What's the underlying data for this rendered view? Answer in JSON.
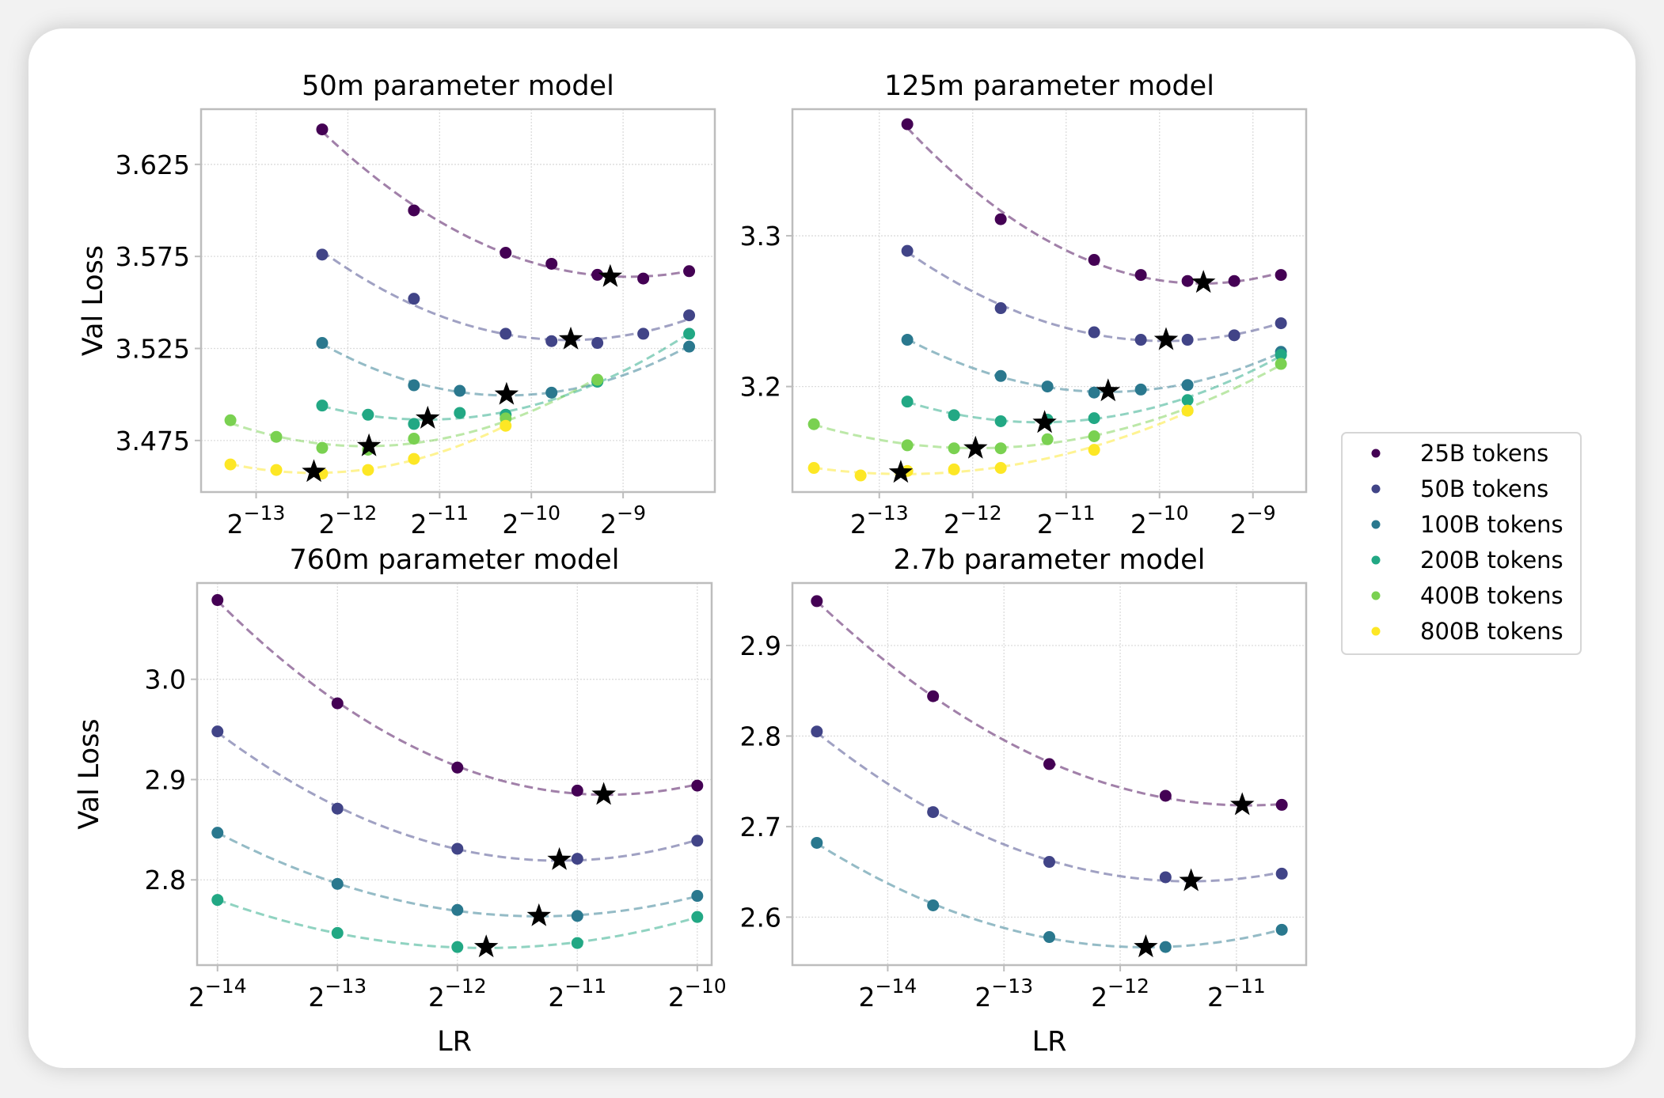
{
  "figure": {
    "legend": {
      "placement": "right",
      "entries": [
        {
          "label": "25B tokens",
          "color": "#440154"
        },
        {
          "label": "50B tokens",
          "color": "#414487"
        },
        {
          "label": "100B tokens",
          "color": "#2a788e"
        },
        {
          "label": "200B tokens",
          "color": "#22a884"
        },
        {
          "label": "400B tokens",
          "color": "#7ad151"
        },
        {
          "label": "800B tokens",
          "color": "#fde725"
        }
      ]
    },
    "optimum_marker": "black star"
  },
  "chart_data": [
    {
      "type": "line",
      "title": "50m parameter model",
      "xlabel": "",
      "ylabel": "Val Loss",
      "xscale": "log2",
      "xlim_log2": [
        -13.6,
        -8.0
      ],
      "ylim": [
        3.447,
        3.655
      ],
      "xticks": [
        {
          "value": -13,
          "label": "2^-13"
        },
        {
          "value": -12,
          "label": "2^-12"
        },
        {
          "value": -11,
          "label": "2^-11"
        },
        {
          "value": -10,
          "label": "2^-10"
        },
        {
          "value": -9,
          "label": "2^-9"
        }
      ],
      "yticks": [
        {
          "value": 3.475,
          "label": "3.475"
        },
        {
          "value": 3.525,
          "label": "3.525"
        },
        {
          "value": 3.575,
          "label": "3.575"
        },
        {
          "value": 3.625,
          "label": "3.625"
        }
      ],
      "grid": true,
      "series": [
        {
          "name": "25B tokens",
          "x_log2": [
            -12.28,
            -11.28,
            -10.28,
            -9.78,
            -9.28,
            -8.78,
            -8.28
          ],
          "y": [
            3.644,
            3.6,
            3.577,
            3.571,
            3.565,
            3.563,
            3.567
          ],
          "optimum": {
            "x_log2": -9.14,
            "y": 3.564
          }
        },
        {
          "name": "50B tokens",
          "x_log2": [
            -12.28,
            -11.28,
            -10.28,
            -9.78,
            -9.28,
            -8.78,
            -8.28
          ],
          "y": [
            3.576,
            3.552,
            3.533,
            3.529,
            3.528,
            3.533,
            3.543
          ],
          "optimum": {
            "x_log2": -9.57,
            "y": 3.53
          }
        },
        {
          "name": "100B tokens",
          "x_log2": [
            -12.28,
            -11.28,
            -10.78,
            -9.78,
            -9.28,
            -8.28
          ],
          "y": [
            3.528,
            3.505,
            3.502,
            3.501,
            3.507,
            3.526
          ],
          "optimum": {
            "x_log2": -10.27,
            "y": 3.5
          }
        },
        {
          "name": "200B tokens",
          "x_log2": [
            -12.28,
            -11.78,
            -11.28,
            -10.78,
            -10.28,
            -9.28,
            -8.28
          ],
          "y": [
            3.494,
            3.489,
            3.484,
            3.49,
            3.489,
            3.507,
            3.533
          ],
          "optimum": {
            "x_log2": -11.13,
            "y": 3.487
          }
        },
        {
          "name": "400B tokens",
          "x_log2": [
            -13.28,
            -12.78,
            -12.28,
            -11.78,
            -11.28,
            -10.28,
            -9.28
          ],
          "y": [
            3.486,
            3.477,
            3.471,
            3.47,
            3.476,
            3.487,
            3.508
          ],
          "optimum": {
            "x_log2": -11.77,
            "y": 3.472
          }
        },
        {
          "name": "800B tokens",
          "x_log2": [
            -13.28,
            -12.78,
            -12.28,
            -11.78,
            -11.28,
            -10.28
          ],
          "y": [
            3.462,
            3.459,
            3.457,
            3.459,
            3.465,
            3.483
          ],
          "optimum": {
            "x_log2": -12.37,
            "y": 3.458
          }
        }
      ]
    },
    {
      "type": "line",
      "title": "125m parameter model",
      "xlabel": "",
      "ylabel": "",
      "xscale": "log2",
      "xlim_log2": [
        -13.93,
        -8.43
      ],
      "ylim": [
        3.13,
        3.384
      ],
      "xticks": [
        {
          "value": -13,
          "label": "2^-13"
        },
        {
          "value": -12,
          "label": "2^-12"
        },
        {
          "value": -11,
          "label": "2^-11"
        },
        {
          "value": -10,
          "label": "2^-10"
        },
        {
          "value": -9,
          "label": "2^-9"
        }
      ],
      "yticks": [
        {
          "value": 3.2,
          "label": "3.2"
        },
        {
          "value": 3.3,
          "label": "3.3"
        }
      ],
      "grid": true,
      "series": [
        {
          "name": "25B tokens",
          "x_log2": [
            -12.7,
            -11.7,
            -10.7,
            -10.2,
            -9.7,
            -9.2,
            -8.7
          ],
          "y": [
            3.374,
            3.311,
            3.284,
            3.274,
            3.27,
            3.27,
            3.274
          ],
          "optimum": {
            "x_log2": -9.53,
            "y": 3.269
          }
        },
        {
          "name": "50B tokens",
          "x_log2": [
            -12.7,
            -11.7,
            -10.7,
            -10.2,
            -9.7,
            -9.2,
            -8.7
          ],
          "y": [
            3.29,
            3.252,
            3.236,
            3.231,
            3.231,
            3.234,
            3.242
          ],
          "optimum": {
            "x_log2": -9.93,
            "y": 3.231
          }
        },
        {
          "name": "100B tokens",
          "x_log2": [
            -12.7,
            -11.7,
            -11.2,
            -10.7,
            -10.2,
            -9.7,
            -8.7
          ],
          "y": [
            3.231,
            3.207,
            3.2,
            3.196,
            3.198,
            3.201,
            3.223
          ],
          "optimum": {
            "x_log2": -10.55,
            "y": 3.197
          }
        },
        {
          "name": "200B tokens",
          "x_log2": [
            -12.7,
            -12.2,
            -11.7,
            -11.2,
            -10.7,
            -9.7,
            -8.7
          ],
          "y": [
            3.19,
            3.181,
            3.177,
            3.178,
            3.179,
            3.191,
            3.221
          ],
          "optimum": {
            "x_log2": -11.23,
            "y": 3.176
          }
        },
        {
          "name": "400B tokens",
          "x_log2": [
            -13.7,
            -12.7,
            -12.2,
            -11.7,
            -11.2,
            -10.7,
            -9.7,
            -8.7
          ],
          "y": [
            3.175,
            3.161,
            3.159,
            3.159,
            3.165,
            3.167,
            3.184,
            3.215
          ],
          "optimum": {
            "x_log2": -11.97,
            "y": 3.159
          }
        },
        {
          "name": "800B tokens",
          "x_log2": [
            -13.7,
            -13.2,
            -12.7,
            -12.2,
            -11.7,
            -10.7,
            -9.7
          ],
          "y": [
            3.146,
            3.141,
            3.144,
            3.145,
            3.146,
            3.158,
            3.184
          ],
          "optimum": {
            "x_log2": -12.77,
            "y": 3.143
          }
        }
      ]
    },
    {
      "type": "line",
      "title": "760m parameter model",
      "xlabel": "LR",
      "ylabel": "Val Loss",
      "xscale": "log2",
      "xlim_log2": [
        -14.17,
        -9.88
      ],
      "ylim": [
        2.715,
        3.096
      ],
      "xticks": [
        {
          "value": -14,
          "label": "2^-14"
        },
        {
          "value": -13,
          "label": "2^-13"
        },
        {
          "value": -12,
          "label": "2^-12"
        },
        {
          "value": -11,
          "label": "2^-11"
        },
        {
          "value": -10,
          "label": "2^-10"
        }
      ],
      "yticks": [
        {
          "value": 2.8,
          "label": "2.8"
        },
        {
          "value": 2.9,
          "label": "2.9"
        },
        {
          "value": 3.0,
          "label": "3.0"
        }
      ],
      "grid": true,
      "series": [
        {
          "name": "25B tokens",
          "x_log2": [
            -14,
            -13,
            -12,
            -11,
            -10
          ],
          "y": [
            3.079,
            2.976,
            2.912,
            2.889,
            2.894
          ],
          "optimum": {
            "x_log2": -10.78,
            "y": 2.885
          }
        },
        {
          "name": "50B tokens",
          "x_log2": [
            -14,
            -13,
            -12,
            -11,
            -10
          ],
          "y": [
            2.948,
            2.871,
            2.831,
            2.821,
            2.839
          ],
          "optimum": {
            "x_log2": -11.15,
            "y": 2.82
          }
        },
        {
          "name": "100B tokens",
          "x_log2": [
            -14,
            -13,
            -12,
            -11,
            -10
          ],
          "y": [
            2.847,
            2.796,
            2.77,
            2.764,
            2.784
          ],
          "optimum": {
            "x_log2": -11.32,
            "y": 2.764
          }
        },
        {
          "name": "200B tokens",
          "x_log2": [
            -14,
            -13,
            -12,
            -11,
            -10
          ],
          "y": [
            2.78,
            2.747,
            2.733,
            2.737,
            2.763
          ],
          "optimum": {
            "x_log2": -11.76,
            "y": 2.733
          }
        }
      ]
    },
    {
      "type": "line",
      "title": "2.7b parameter model",
      "xlabel": "LR",
      "ylabel": "",
      "xscale": "log2",
      "xlim_log2": [
        -14.82,
        -10.4
      ],
      "ylim": [
        2.547,
        2.969
      ],
      "xticks": [
        {
          "value": -14,
          "label": "2^-14"
        },
        {
          "value": -13,
          "label": "2^-13"
        },
        {
          "value": -12,
          "label": "2^-12"
        },
        {
          "value": -11,
          "label": "2^-11"
        }
      ],
      "yticks": [
        {
          "value": 2.6,
          "label": "2.6"
        },
        {
          "value": 2.7,
          "label": "2.7"
        },
        {
          "value": 2.8,
          "label": "2.8"
        },
        {
          "value": 2.9,
          "label": "2.9"
        }
      ],
      "grid": true,
      "series": [
        {
          "name": "25B tokens",
          "x_log2": [
            -14.61,
            -13.61,
            -12.61,
            -11.61,
            -10.61
          ],
          "y": [
            2.949,
            2.844,
            2.769,
            2.734,
            2.724
          ],
          "optimum": {
            "x_log2": -10.95,
            "y": 2.724
          }
        },
        {
          "name": "50B tokens",
          "x_log2": [
            -14.61,
            -13.61,
            -12.61,
            -11.61,
            -10.61
          ],
          "y": [
            2.805,
            2.716,
            2.661,
            2.644,
            2.648
          ],
          "optimum": {
            "x_log2": -11.39,
            "y": 2.64
          }
        },
        {
          "name": "100B tokens",
          "x_log2": [
            -14.61,
            -13.61,
            -12.61,
            -11.61,
            -10.61
          ],
          "y": [
            2.682,
            2.613,
            2.578,
            2.567,
            2.586
          ],
          "optimum": {
            "x_log2": -11.78,
            "y": 2.567
          }
        }
      ]
    }
  ]
}
